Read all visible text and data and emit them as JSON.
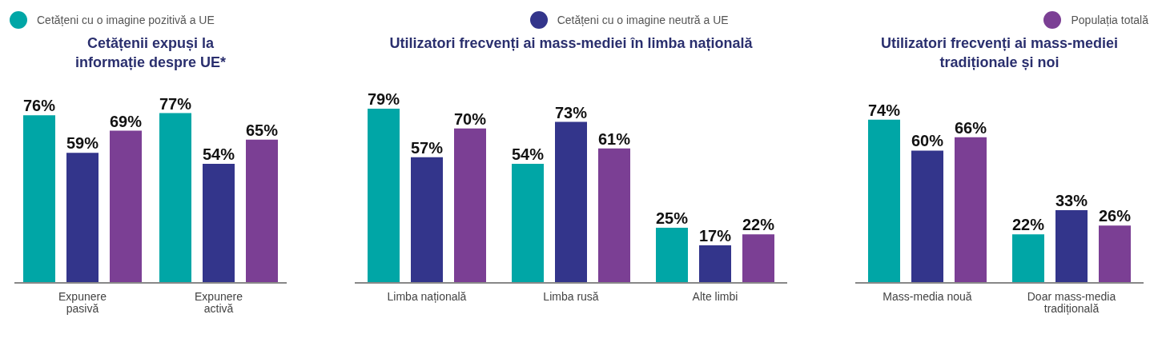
{
  "chart_data": [
    {
      "type": "bar",
      "title": "Cetățenii expuși la informație despre UE*",
      "categories": [
        "Expunere pasivă",
        "Expunere activă"
      ],
      "legend": "top",
      "series": [
        {
          "name": "Cetățeni cu o imagine pozitivă a UE",
          "color": "#00a6a6",
          "values": [
            76,
            77
          ],
          "value_labels": [
            "76%",
            "77%"
          ]
        },
        {
          "name": "Cetățeni cu o imagine neutră a UE",
          "color": "#33358b",
          "values": [
            59,
            54
          ],
          "value_labels": [
            "59%",
            "54%"
          ]
        },
        {
          "name": "Populația totală",
          "color": "#7b3f94",
          "values": [
            69,
            65
          ],
          "value_labels": [
            "69%",
            "65%"
          ]
        }
      ]
    },
    {
      "type": "bar",
      "title": "Utilizatori frecvenți ai mass-mediei în limba națională",
      "categories": [
        "Limba națională",
        "Limba rusă",
        "Alte limbi"
      ],
      "series": [
        {
          "color": "#00a6a6",
          "values": [
            79,
            54,
            25
          ],
          "value_labels": [
            "79%",
            "54%",
            "25%"
          ]
        },
        {
          "color": "#33358b",
          "values": [
            57,
            73,
            17
          ],
          "value_labels": [
            "57%",
            "73%",
            "17%"
          ]
        },
        {
          "color": "#7b3f94",
          "values": [
            70,
            61,
            22
          ],
          "value_labels": [
            "70%",
            "61%",
            "22%"
          ]
        }
      ]
    },
    {
      "type": "bar",
      "title": "Utilizatori frecvenți ai mass-mediei tradiționale și noi",
      "categories": [
        "Mass-media nouă",
        "Doar mass-media tradițională"
      ],
      "series": [
        {
          "color": "#00a6a6",
          "values": [
            74,
            22
          ],
          "value_labels": [
            "74%",
            "22%"
          ]
        },
        {
          "color": "#33358b",
          "values": [
            60,
            33
          ],
          "value_labels": [
            "60%",
            "33%"
          ]
        },
        {
          "color": "#7b3f94",
          "values": [
            66,
            26
          ],
          "value_labels": [
            "66%",
            "26%"
          ]
        }
      ]
    }
  ]
}
